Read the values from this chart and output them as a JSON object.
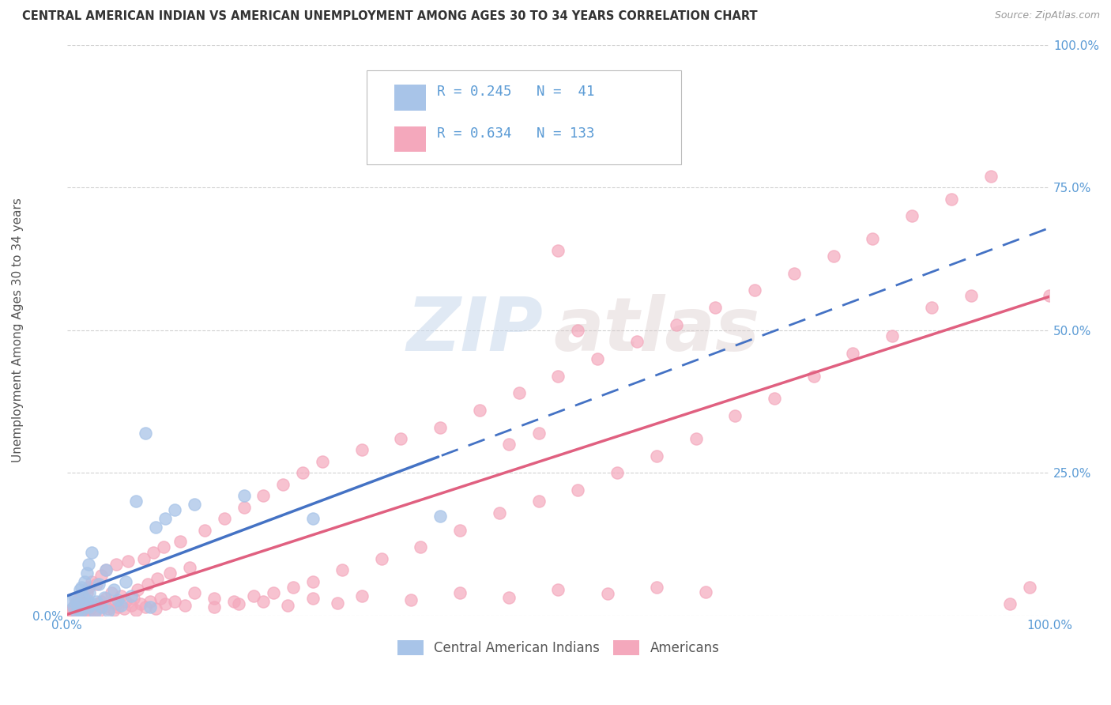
{
  "title": "CENTRAL AMERICAN INDIAN VS AMERICAN UNEMPLOYMENT AMONG AGES 30 TO 34 YEARS CORRELATION CHART",
  "source": "Source: ZipAtlas.com",
  "ylabel": "Unemployment Among Ages 30 to 34 years",
  "xlim": [
    0,
    1.0
  ],
  "ylim": [
    0,
    1.0
  ],
  "watermark_line1": "ZIP",
  "watermark_line2": "atlas",
  "color_blue": "#A8C4E8",
  "color_pink": "#F4A8BC",
  "color_blue_line": "#4472C4",
  "color_pink_line": "#E06080",
  "color_axis_label": "#5B9BD5",
  "background_color": "#FFFFFF",
  "grid_color": "#CCCCCC",
  "blue_scatter_x": [
    0.005,
    0.007,
    0.008,
    0.01,
    0.01,
    0.012,
    0.013,
    0.015,
    0.015,
    0.016,
    0.018,
    0.018,
    0.02,
    0.02,
    0.022,
    0.022,
    0.023,
    0.025,
    0.025,
    0.028,
    0.03,
    0.032,
    0.035,
    0.038,
    0.04,
    0.042,
    0.048,
    0.052,
    0.055,
    0.06,
    0.065,
    0.07,
    0.08,
    0.085,
    0.09,
    0.1,
    0.11,
    0.13,
    0.18,
    0.25,
    0.38
  ],
  "blue_scatter_y": [
    0.025,
    0.015,
    0.03,
    0.005,
    0.02,
    0.01,
    0.045,
    0.008,
    0.05,
    0.035,
    0.018,
    0.06,
    0.028,
    0.075,
    0.015,
    0.09,
    0.04,
    0.02,
    0.11,
    0.005,
    0.025,
    0.055,
    0.015,
    0.032,
    0.08,
    0.008,
    0.045,
    0.028,
    0.018,
    0.06,
    0.035,
    0.2,
    0.32,
    0.015,
    0.155,
    0.17,
    0.185,
    0.195,
    0.21,
    0.17,
    0.175
  ],
  "pink_scatter_x": [
    0.003,
    0.005,
    0.006,
    0.007,
    0.008,
    0.008,
    0.009,
    0.01,
    0.01,
    0.01,
    0.012,
    0.012,
    0.013,
    0.014,
    0.015,
    0.015,
    0.016,
    0.018,
    0.018,
    0.02,
    0.02,
    0.022,
    0.022,
    0.025,
    0.025,
    0.028,
    0.03,
    0.03,
    0.032,
    0.035,
    0.035,
    0.038,
    0.04,
    0.04,
    0.042,
    0.045,
    0.048,
    0.05,
    0.05,
    0.052,
    0.055,
    0.058,
    0.06,
    0.062,
    0.065,
    0.068,
    0.07,
    0.072,
    0.075,
    0.078,
    0.08,
    0.082,
    0.085,
    0.088,
    0.09,
    0.092,
    0.095,
    0.098,
    0.1,
    0.105,
    0.11,
    0.115,
    0.12,
    0.125,
    0.13,
    0.14,
    0.15,
    0.16,
    0.17,
    0.18,
    0.19,
    0.2,
    0.21,
    0.22,
    0.23,
    0.24,
    0.25,
    0.26,
    0.28,
    0.3,
    0.32,
    0.34,
    0.36,
    0.38,
    0.4,
    0.42,
    0.44,
    0.46,
    0.48,
    0.5,
    0.52,
    0.54,
    0.56,
    0.58,
    0.6,
    0.62,
    0.64,
    0.66,
    0.68,
    0.7,
    0.72,
    0.74,
    0.76,
    0.78,
    0.8,
    0.82,
    0.84,
    0.86,
    0.88,
    0.9,
    0.92,
    0.94,
    0.96,
    0.98,
    1.0,
    0.45,
    0.48,
    0.5,
    0.52,
    0.15,
    0.175,
    0.2,
    0.225,
    0.25,
    0.275,
    0.3,
    0.35,
    0.4,
    0.45,
    0.5,
    0.55,
    0.6,
    0.65
  ],
  "pink_scatter_y": [
    0.008,
    0.01,
    0.005,
    0.015,
    0.005,
    0.02,
    0.012,
    0.003,
    0.025,
    0.018,
    0.008,
    0.03,
    0.015,
    0.022,
    0.01,
    0.035,
    0.018,
    0.005,
    0.028,
    0.012,
    0.04,
    0.008,
    0.05,
    0.015,
    0.06,
    0.01,
    0.02,
    0.055,
    0.008,
    0.025,
    0.07,
    0.015,
    0.03,
    0.08,
    0.012,
    0.04,
    0.01,
    0.02,
    0.09,
    0.015,
    0.035,
    0.012,
    0.025,
    0.095,
    0.018,
    0.03,
    0.01,
    0.045,
    0.02,
    0.1,
    0.015,
    0.055,
    0.025,
    0.11,
    0.012,
    0.065,
    0.03,
    0.12,
    0.02,
    0.075,
    0.025,
    0.13,
    0.018,
    0.085,
    0.04,
    0.15,
    0.03,
    0.17,
    0.025,
    0.19,
    0.035,
    0.21,
    0.04,
    0.23,
    0.05,
    0.25,
    0.06,
    0.27,
    0.08,
    0.29,
    0.1,
    0.31,
    0.12,
    0.33,
    0.15,
    0.36,
    0.18,
    0.39,
    0.2,
    0.42,
    0.22,
    0.45,
    0.25,
    0.48,
    0.28,
    0.51,
    0.31,
    0.54,
    0.35,
    0.57,
    0.38,
    0.6,
    0.42,
    0.63,
    0.46,
    0.66,
    0.49,
    0.7,
    0.54,
    0.73,
    0.56,
    0.77,
    0.02,
    0.05,
    0.56,
    0.3,
    0.32,
    0.64,
    0.5,
    0.015,
    0.02,
    0.025,
    0.018,
    0.03,
    0.022,
    0.035,
    0.028,
    0.04,
    0.032,
    0.045,
    0.038,
    0.05,
    0.042
  ]
}
